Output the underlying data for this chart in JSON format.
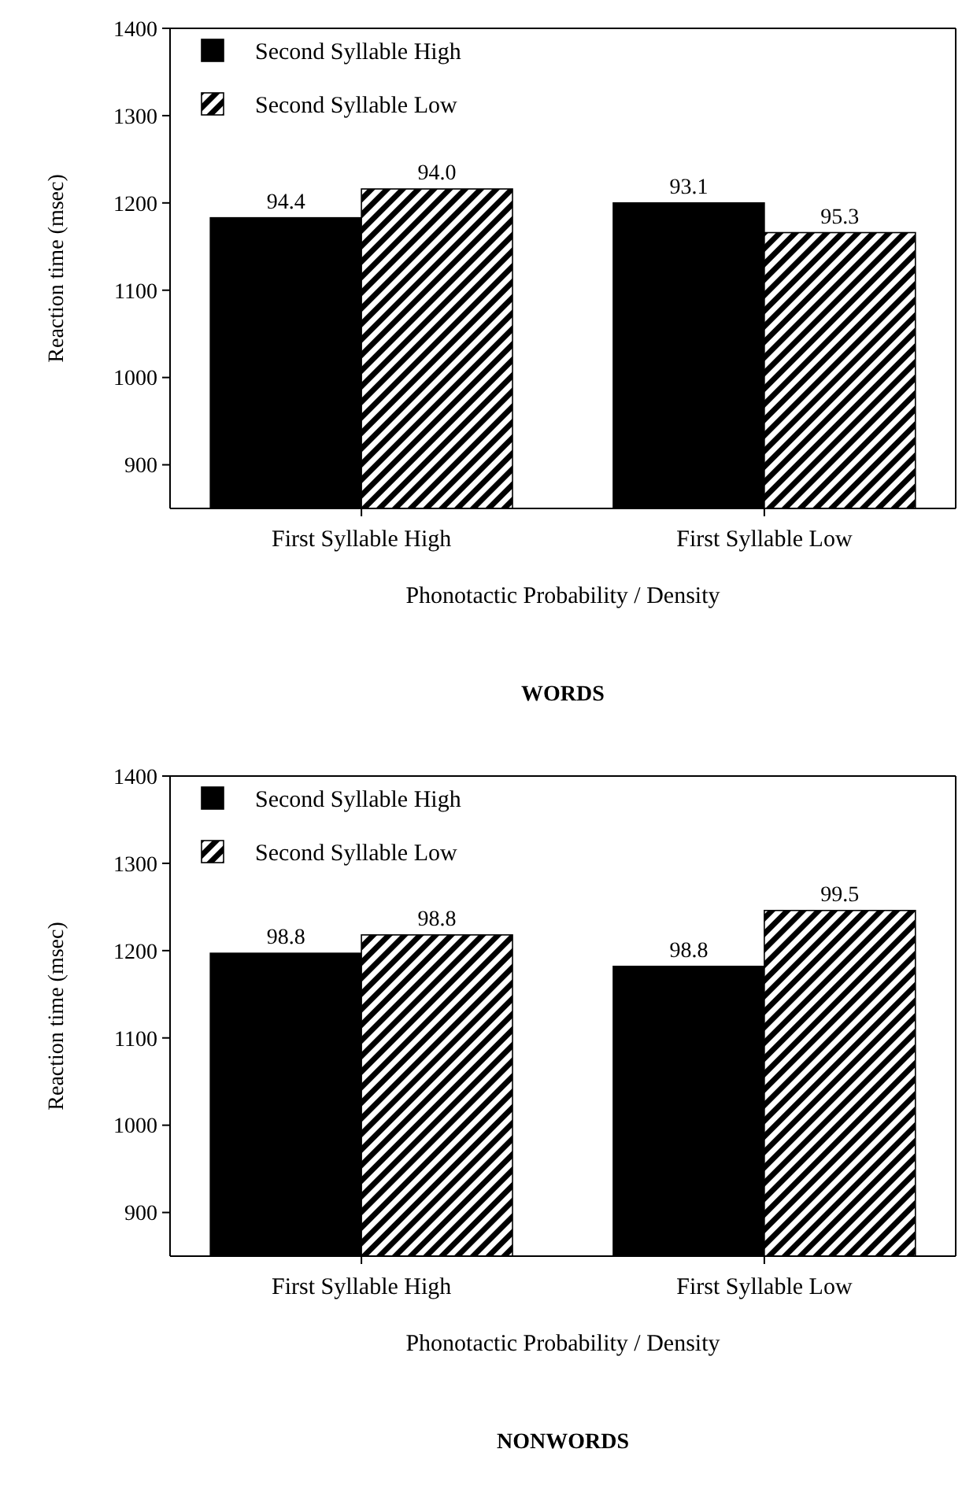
{
  "chart_data": [
    {
      "type": "bar",
      "title": "WORDS",
      "xlabel": "Phonotactic Probability / Density",
      "ylabel": "Reaction time (msec)",
      "categories": [
        "First Syllable High",
        "First Syllable Low"
      ],
      "ylim": [
        850,
        1400
      ],
      "yticks": [
        900,
        1000,
        1100,
        1200,
        1300,
        1400
      ],
      "legend": "top left",
      "series": [
        {
          "name": "Second Syllable High",
          "color": "#000000",
          "values": [
            1183,
            1200
          ]
        },
        {
          "name": "Second Syllable Low",
          "color": "#000000",
          "values": [
            1216,
            1166
          ]
        }
      ],
      "annotations": [
        {
          "text": "94.4",
          "x": "First Syllable High",
          "y": 1183
        },
        {
          "text": "94.0",
          "x": "First Syllable High",
          "y": 1216
        },
        {
          "text": "93.1",
          "x": "First Syllable Low",
          "y": 1200
        },
        {
          "text": "95.3",
          "x": "First Syllable Low",
          "y": 1166
        }
      ]
    },
    {
      "type": "bar",
      "title": "NONWORDS",
      "xlabel": "Phonotactic Probability / Density",
      "ylabel": "Reaction time (msec)",
      "categories": [
        "First Syllable High",
        "First Syllable Low"
      ],
      "ylim": [
        850,
        1400
      ],
      "yticks": [
        900,
        1000,
        1100,
        1200,
        1300,
        1400
      ],
      "legend": "top left",
      "series": [
        {
          "name": "Second Syllable High",
          "color": "#000000",
          "values": [
            1197,
            1182
          ]
        },
        {
          "name": "Second Syllable Low",
          "color": "#000000",
          "values": [
            1218,
            1246
          ]
        }
      ],
      "annotations": [
        {
          "text": "98.8",
          "x": "First Syllable High",
          "y": 1197
        },
        {
          "text": "98.8",
          "x": "First Syllable High",
          "y": 1218
        },
        {
          "text": "98.8",
          "x": "First Syllable Low",
          "y": 1182
        },
        {
          "text": "99.5",
          "x": "First Syllable Low",
          "y": 1246
        }
      ]
    }
  ]
}
